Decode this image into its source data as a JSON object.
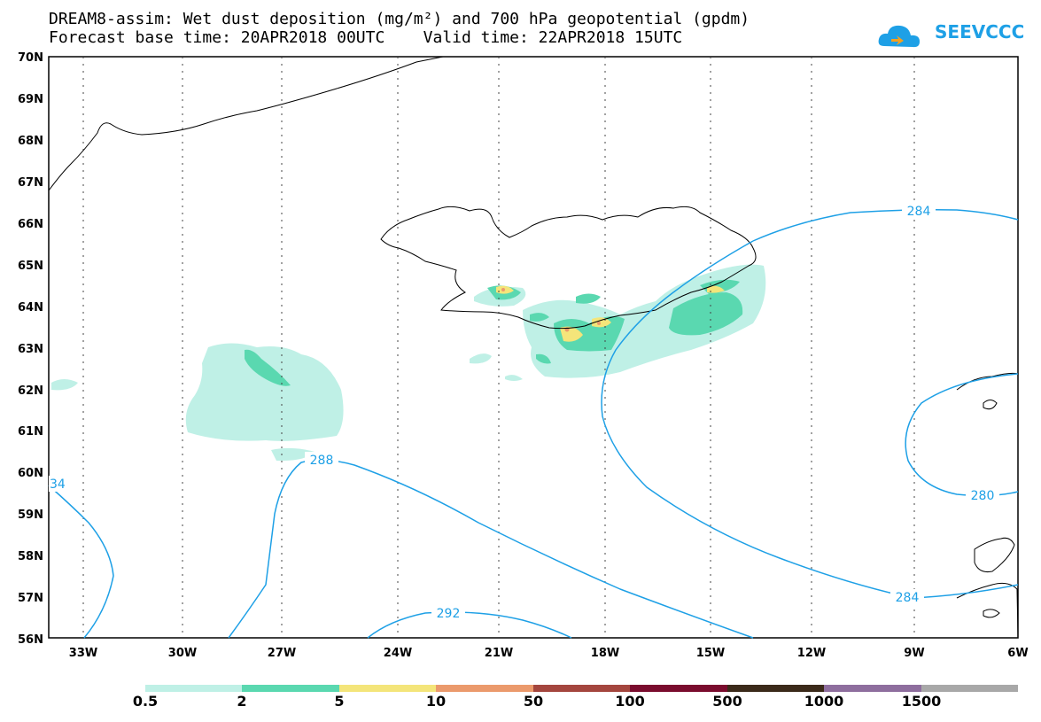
{
  "header": {
    "title_line1": "DREAM8-assim: Wet dust deposition (mg/m²) and 700 hPa geopotential (gpdm)",
    "title_line2": "Forecast base time: 20APR2018 00UTC    Valid time: 22APR2018 15UTC"
  },
  "logo": {
    "text": "SEEVCCC"
  },
  "axes": {
    "lat_labels": [
      "70N",
      "69N",
      "68N",
      "67N",
      "66N",
      "65N",
      "64N",
      "63N",
      "62N",
      "61N",
      "60N",
      "59N",
      "58N",
      "57N",
      "56N"
    ],
    "lon_labels": [
      "33W",
      "30W",
      "27W",
      "24W",
      "21W",
      "18W",
      "15W",
      "12W",
      "9W",
      "6W"
    ]
  },
  "contours": {
    "labels": [
      "284",
      "288",
      "292",
      "280",
      "284",
      "34"
    ]
  },
  "colorbar": {
    "labels": [
      "0.5",
      "2",
      "5",
      "10",
      "50",
      "100",
      "500",
      "1000",
      "1500"
    ],
    "colors": [
      "#bff0e6",
      "#5ad8b0",
      "#f4e57a",
      "#eb9a6c",
      "#a4463e",
      "#7a0c2e",
      "#3b2a1a",
      "#8e6e9e",
      "#a8a8a8"
    ]
  },
  "colors": {
    "contour": "#1ea0e6",
    "dust_light": "#bff0e6",
    "dust_mid": "#5ad8b0",
    "dust_high": "#f4e57a",
    "dust_peak": "#eb9a6c"
  }
}
